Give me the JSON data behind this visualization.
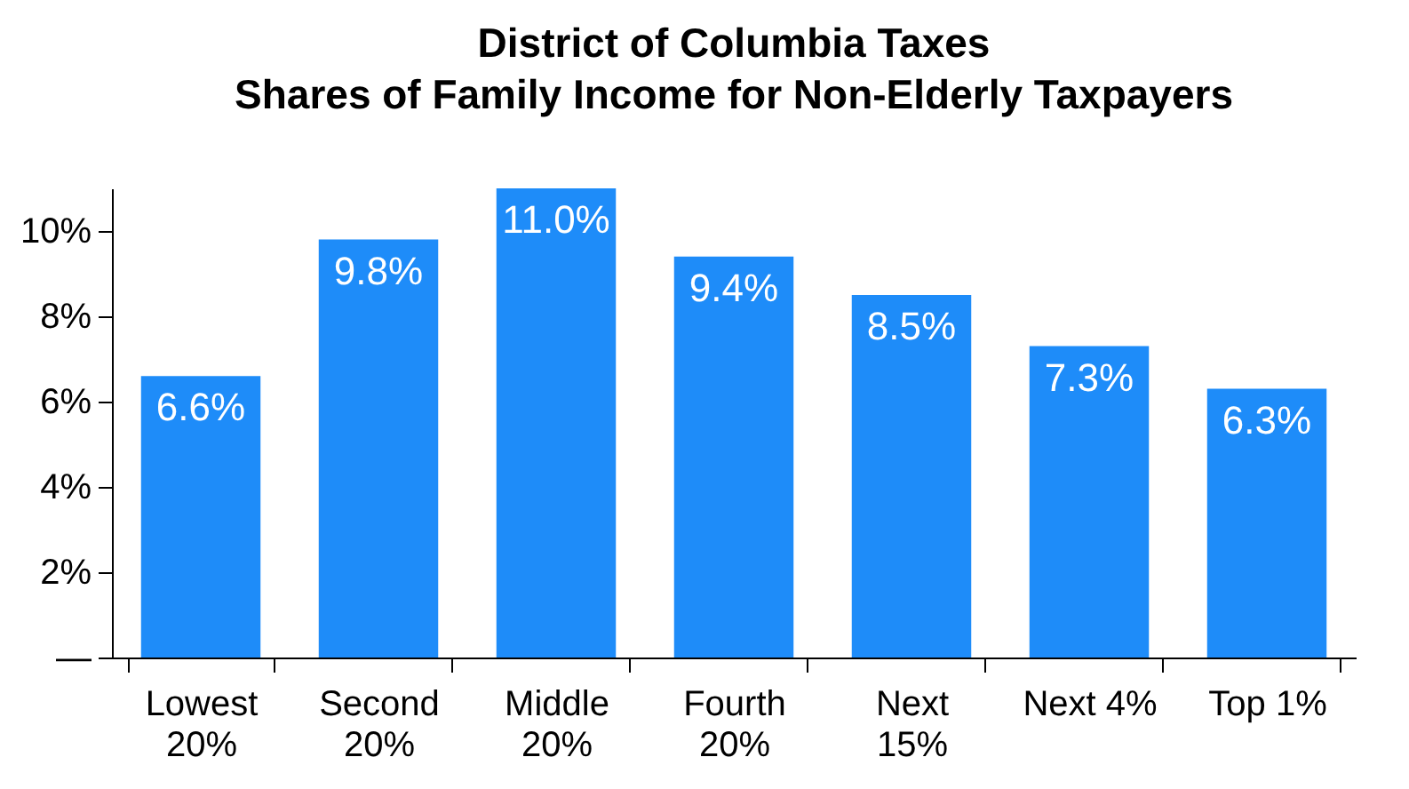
{
  "chart_data": {
    "type": "bar",
    "title": "District of Columbia Taxes",
    "subtitle": "Shares of Family Income for Non-Elderly Taxpayers",
    "categories": [
      "Lowest\n20%",
      "Second\n20%",
      "Middle\n20%",
      "Fourth\n20%",
      "Next\n15%",
      "Next 4%",
      "Top 1%"
    ],
    "values": [
      6.6,
      9.8,
      11.0,
      9.4,
      8.5,
      7.3,
      6.3
    ],
    "value_labels": [
      "6.6%",
      "9.8%",
      "11.0%",
      "9.4%",
      "8.5%",
      "7.3%",
      "6.3%"
    ],
    "color": "#1e8cf9",
    "ylim": [
      0,
      11
    ],
    "yticks": [
      {
        "value": 0,
        "label": "—"
      },
      {
        "value": 2,
        "label": "2%"
      },
      {
        "value": 4,
        "label": "4%"
      },
      {
        "value": 6,
        "label": "6%"
      },
      {
        "value": 8,
        "label": "8%"
      },
      {
        "value": 10,
        "label": "10%"
      }
    ],
    "grid": false
  }
}
